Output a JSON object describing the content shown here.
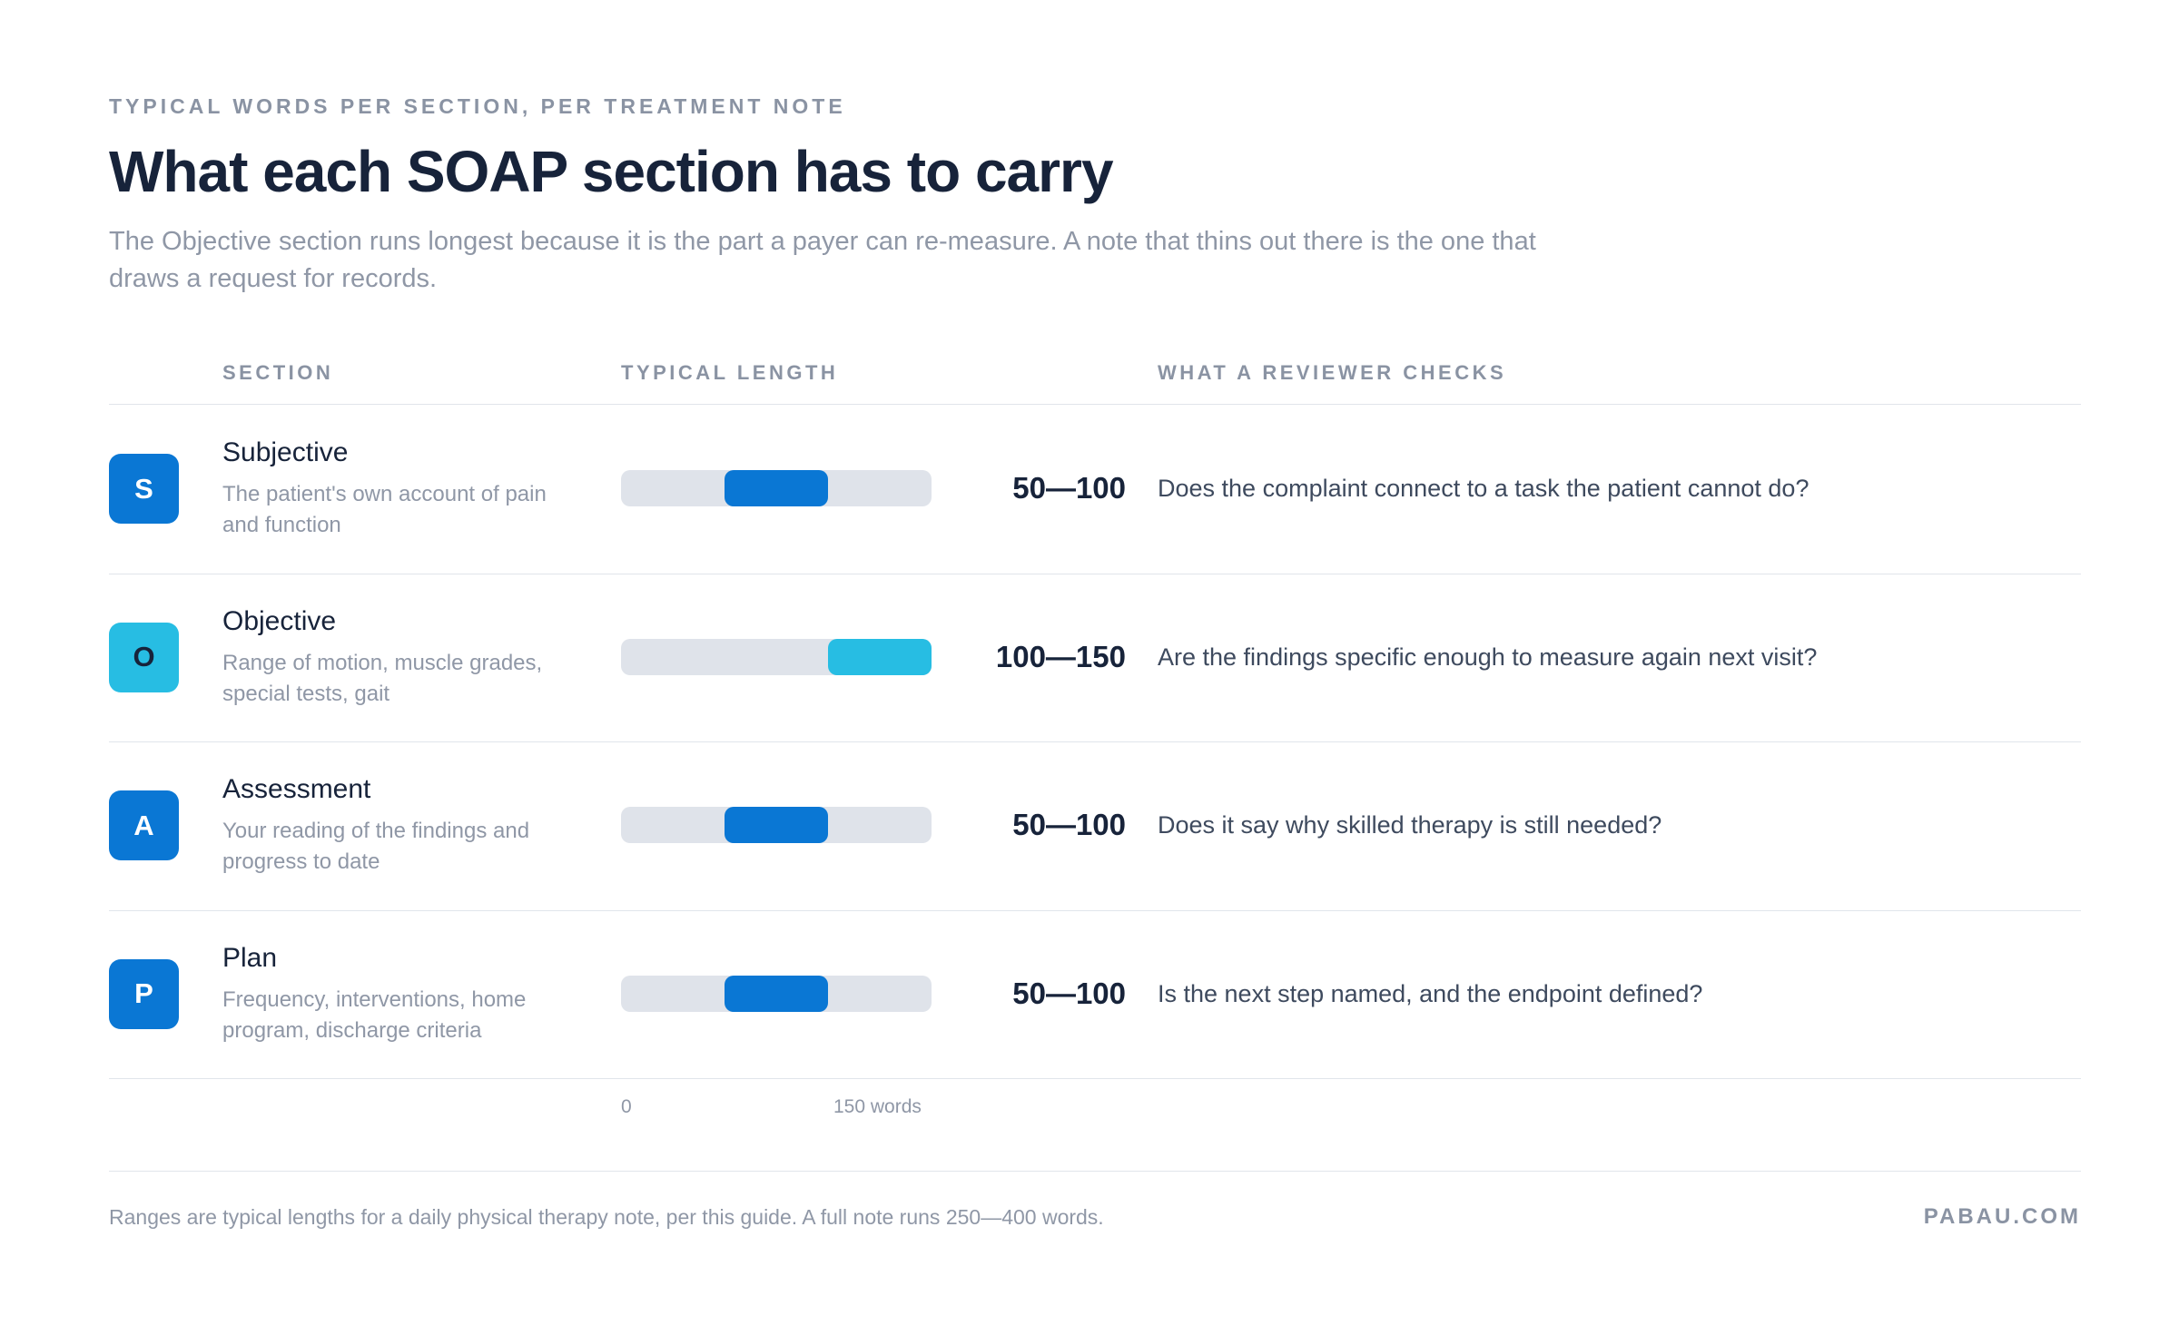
{
  "header": {
    "eyebrow": "TYPICAL WORDS PER SECTION, PER TREATMENT NOTE",
    "title": "What each SOAP section has to carry",
    "subtitle": "The Objective section runs longest because it is the part a payer can re-measure. A note that thins out there is the one that draws a request for records."
  },
  "columns": {
    "section": "SECTION",
    "length": "TYPICAL LENGTH",
    "checks": "WHAT A REVIEWER CHECKS"
  },
  "colors": {
    "primary_blue": "#0a77d4",
    "light_blue": "#27bde3",
    "track": "#dfe3ea"
  },
  "chart_data": {
    "type": "bar",
    "title": "What each SOAP section has to carry",
    "xlim": [
      0,
      150
    ],
    "axis_labels": [
      "0",
      "150 words"
    ],
    "rows": [
      {
        "letter": "S",
        "name": "Subjective",
        "description": "The patient's own account of pain and function",
        "range": [
          50,
          100
        ],
        "range_label": "50—100",
        "check": "Does the complaint connect to a task the patient cannot do?",
        "color": "#0a77d4",
        "light": false
      },
      {
        "letter": "O",
        "name": "Objective",
        "description": "Range of motion, muscle grades, special tests, gait",
        "range": [
          100,
          150
        ],
        "range_label": "100—150",
        "check": "Are the findings specific enough to measure again next visit?",
        "color": "#27bde3",
        "light": true
      },
      {
        "letter": "A",
        "name": "Assessment",
        "description": "Your reading of the findings and progress to date",
        "range": [
          50,
          100
        ],
        "range_label": "50—100",
        "check": "Does it say why skilled therapy is still needed?",
        "color": "#0a77d4",
        "light": false
      },
      {
        "letter": "P",
        "name": "Plan",
        "description": "Frequency, interventions, home program, discharge criteria",
        "range": [
          50,
          100
        ],
        "range_label": "50—100",
        "check": "Is the next step named, and the endpoint defined?",
        "color": "#0a77d4",
        "light": false
      }
    ]
  },
  "footer": {
    "note": "Ranges are typical lengths for a daily physical therapy note, per this guide. A full note runs 250—400 words.",
    "brand": "PABAU.COM"
  }
}
